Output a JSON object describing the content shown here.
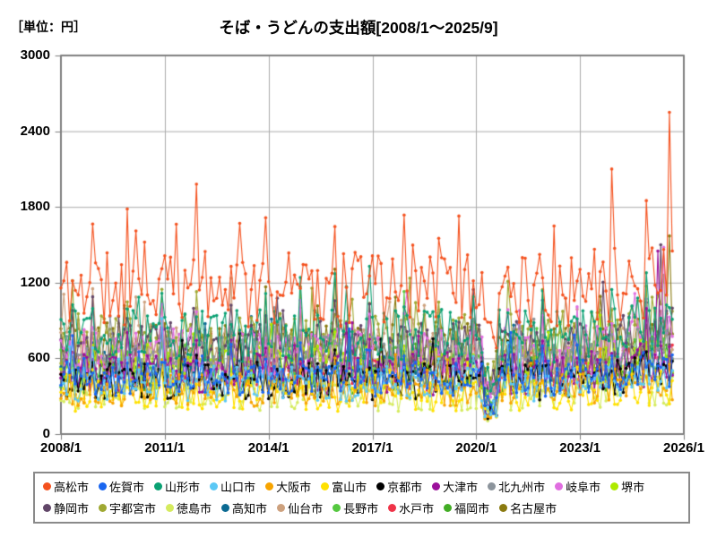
{
  "header": {
    "unit_label": "［単位：円］",
    "title": "そば・うどんの支出額[2008/1～2025/9]"
  },
  "chart_data": {
    "type": "line",
    "title": "そば・うどんの支出額[2008/1～2025/9]",
    "unit": "円",
    "x_start": "2008/1",
    "x_end": "2025/9",
    "months": 213,
    "x_axis_span_months": 216,
    "x_axis_ticks": [
      "2008/1",
      "2011/1",
      "2014/1",
      "2017/1",
      "2020/1",
      "2023/1",
      "2026/1"
    ],
    "y_axis_ticks": [
      0,
      600,
      1200,
      1800,
      2400,
      3000
    ],
    "ylim": [
      0,
      3000
    ],
    "grid": true,
    "grid_color": "#ababab",
    "frame_color": "#7f7f7f",
    "legend_position": "bottom",
    "legend_row_break": 11,
    "marker": "circle",
    "series": [
      {
        "name": "高松市",
        "color": "#f4511e",
        "base": 1150,
        "spread": 300,
        "seed": 11,
        "dec": 430,
        "dipf": 0.75,
        "late": 260,
        "early": 0,
        "overrides": {
          "47": 1980,
          "191": 2100,
          "203": 1850,
          "211": 2550,
          "212": 1450
        }
      },
      {
        "name": "佐賀市",
        "color": "#1a66f0",
        "base": 450,
        "spread": 150,
        "seed": 12,
        "dec": 160,
        "dipf": 0.5,
        "late": 120,
        "early": 0,
        "overrides": {}
      },
      {
        "name": "山形市",
        "color": "#0aa173",
        "base": 780,
        "spread": 210,
        "seed": 13,
        "dec": 260,
        "dipf": 0.55,
        "late": 150,
        "early": 100,
        "overrides": {}
      },
      {
        "name": "山口市",
        "color": "#5bc8f5",
        "base": 400,
        "spread": 140,
        "seed": 14,
        "dec": 140,
        "dipf": 0.5,
        "late": 110,
        "early": 0,
        "overrides": {}
      },
      {
        "name": "大阪市",
        "color": "#f7a400",
        "base": 350,
        "spread": 130,
        "seed": 15,
        "dec": 130,
        "dipf": 0.45,
        "late": 100,
        "early": 0,
        "overrides": {}
      },
      {
        "name": "富山市",
        "color": "#ffe100",
        "base": 300,
        "spread": 120,
        "seed": 16,
        "dec": 150,
        "dipf": 0.5,
        "late": 100,
        "early": 0,
        "overrides": {}
      },
      {
        "name": "京都市",
        "color": "#000000",
        "base": 420,
        "spread": 150,
        "seed": 17,
        "dec": 140,
        "dipf": 0.4,
        "late": 110,
        "early": 0,
        "overrides": {}
      },
      {
        "name": "大津市",
        "color": "#9b109b",
        "base": 480,
        "spread": 170,
        "seed": 18,
        "dec": 150,
        "dipf": 0.45,
        "late": 140,
        "early": 0,
        "overrides": {
          "207": 1450
        }
      },
      {
        "name": "北九州市",
        "color": "#8c949c",
        "base": 600,
        "spread": 180,
        "seed": 19,
        "dec": 170,
        "dipf": 0.55,
        "late": 140,
        "early": 0,
        "overrides": {}
      },
      {
        "name": "岐阜市",
        "color": "#e06ee0",
        "base": 640,
        "spread": 200,
        "seed": 20,
        "dec": 190,
        "dipf": 0.55,
        "late": 150,
        "early": 0,
        "overrides": {
          "209": 1480
        }
      },
      {
        "name": "堺市",
        "color": "#aeea00",
        "base": 540,
        "spread": 180,
        "seed": 21,
        "dec": 150,
        "dipf": 0.5,
        "late": 120,
        "early": 0,
        "overrides": {}
      },
      {
        "name": "静岡市",
        "color": "#614668",
        "base": 700,
        "spread": 200,
        "seed": 22,
        "dec": 220,
        "dipf": 0.6,
        "late": 170,
        "early": 0,
        "overrides": {
          "208": 1500
        }
      },
      {
        "name": "宇都宮市",
        "color": "#9fa832",
        "base": 740,
        "spread": 220,
        "seed": 23,
        "dec": 240,
        "dipf": 0.6,
        "late": 160,
        "early": 0,
        "overrides": {}
      },
      {
        "name": "徳島市",
        "color": "#d5eb5e",
        "base": 310,
        "spread": 130,
        "seed": 24,
        "dec": 110,
        "dipf": 0.5,
        "late": 100,
        "early": 0,
        "overrides": {}
      },
      {
        "name": "高知市",
        "color": "#0b6a92",
        "base": 500,
        "spread": 160,
        "seed": 25,
        "dec": 140,
        "dipf": 0.5,
        "late": 120,
        "early": 0,
        "overrides": {}
      },
      {
        "name": "仙台市",
        "color": "#cda17e",
        "base": 660,
        "spread": 190,
        "seed": 26,
        "dec": 200,
        "dipf": 0.55,
        "late": 140,
        "early": 140,
        "overrides": {}
      },
      {
        "name": "長野市",
        "color": "#55c840",
        "base": 560,
        "spread": 170,
        "seed": 27,
        "dec": 180,
        "dipf": 0.55,
        "late": 130,
        "early": 0,
        "overrides": {}
      },
      {
        "name": "水戸市",
        "color": "#ef3348",
        "base": 500,
        "spread": 160,
        "seed": 28,
        "dec": 160,
        "dipf": 0.5,
        "late": 130,
        "early": 0,
        "overrides": {}
      },
      {
        "name": "福岡市",
        "color": "#42ad25",
        "base": 460,
        "spread": 150,
        "seed": 29,
        "dec": 140,
        "dipf": 0.5,
        "late": 120,
        "early": 0,
        "overrides": {}
      },
      {
        "name": "名古屋市",
        "color": "#8a7a10",
        "base": 690,
        "spread": 200,
        "seed": 30,
        "dec": 230,
        "dipf": 0.6,
        "late": 160,
        "early": 0,
        "overrides": {
          "211": 1570
        }
      }
    ]
  }
}
